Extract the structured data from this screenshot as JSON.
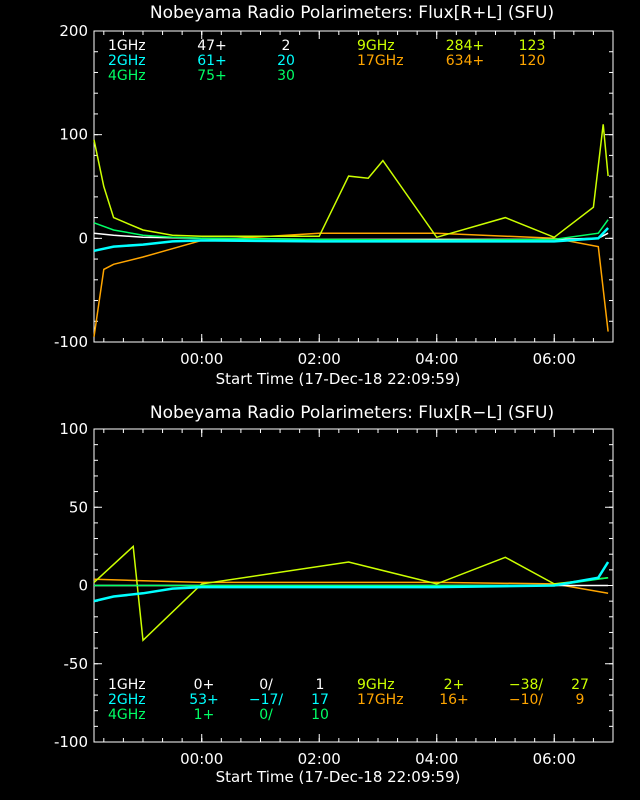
{
  "colors": {
    "1GHz": "#ffffff",
    "2GHz": "#00ffff",
    "4GHz": "#00ff66",
    "9GHz": "#ccff00",
    "17GHz": "#ffa500"
  },
  "chart_data": [
    {
      "type": "line",
      "title": "Nobeyama Radio Polarimeters: Flux[R+L] (SFU)",
      "xlabel": "Start Time (17-Dec-18 22:09:59)",
      "ylabel": "",
      "xlim": [
        "22:09:59",
        "07:00:00"
      ],
      "ylim": [
        -100,
        200
      ],
      "xticks": [
        "00:00",
        "02:00",
        "04:00",
        "06:00"
      ],
      "yticks": [
        "200",
        "100",
        "0",
        "-100"
      ],
      "grid": false,
      "legend": [
        {
          "band": "1GHz",
          "v1": "47+",
          "v2": "2"
        },
        {
          "band": "2GHz",
          "v1": "61+",
          "v2": "20"
        },
        {
          "band": "4GHz",
          "v1": "75+",
          "v2": "30"
        },
        {
          "band": "9GHz",
          "v1": "284+",
          "v2": "123"
        },
        {
          "band": "17GHz",
          "v1": "634+",
          "v2": "120"
        }
      ],
      "series": [
        {
          "name": "1GHz",
          "x": [
            "22:10",
            "22:30",
            "23:00",
            "00:00",
            "02:00",
            "04:00",
            "06:00",
            "06:45",
            "06:55"
          ],
          "y": [
            5,
            3,
            1,
            0,
            -1,
            -1,
            -1,
            0,
            5
          ]
        },
        {
          "name": "2GHz",
          "x": [
            "22:10",
            "22:30",
            "23:00",
            "23:30",
            "00:00",
            "02:00",
            "04:00",
            "06:00",
            "06:45",
            "06:55"
          ],
          "y": [
            -12,
            -8,
            -6,
            -3,
            -2,
            -3,
            -3,
            -3,
            0,
            10
          ]
        },
        {
          "name": "4GHz",
          "x": [
            "22:10",
            "22:30",
            "23:00",
            "23:30",
            "00:00",
            "02:00",
            "04:00",
            "06:00",
            "06:45",
            "06:55"
          ],
          "y": [
            15,
            8,
            3,
            1,
            0,
            -1,
            -2,
            -1,
            5,
            18
          ]
        },
        {
          "name": "9GHz",
          "x": [
            "22:10",
            "22:20",
            "22:30",
            "23:00",
            "23:30",
            "00:00",
            "02:00",
            "02:30",
            "02:50",
            "03:05",
            "04:00",
            "05:10",
            "06:00",
            "06:40",
            "06:50",
            "06:55"
          ],
          "y": [
            95,
            50,
            20,
            8,
            3,
            2,
            2,
            60,
            58,
            75,
            1,
            20,
            1,
            30,
            110,
            60
          ]
        },
        {
          "name": "17GHz",
          "x": [
            "22:10",
            "22:20",
            "22:30",
            "23:00",
            "23:30",
            "00:00",
            "02:00",
            "04:00",
            "06:00",
            "06:45",
            "06:55"
          ],
          "y": [
            -95,
            -30,
            -25,
            -18,
            -10,
            -2,
            5,
            5,
            0,
            -8,
            -90
          ]
        }
      ]
    },
    {
      "type": "line",
      "title": "Nobeyama Radio Polarimeters: Flux[R−L] (SFU)",
      "xlabel": "Start Time (17-Dec-18 22:09:59)",
      "ylabel": "",
      "xlim": [
        "22:09:59",
        "07:00:00"
      ],
      "ylim": [
        -100,
        100
      ],
      "xticks": [
        "00:00",
        "02:00",
        "04:00",
        "06:00"
      ],
      "yticks": [
        "100",
        "50",
        "0",
        "-50",
        "-100"
      ],
      "grid": false,
      "legend": [
        {
          "band": "1GHz",
          "v1": "0+",
          "v2": "0/",
          "v3": "1"
        },
        {
          "band": "2GHz",
          "v1": "53+",
          "v2": "−17/",
          "v3": "17"
        },
        {
          "band": "4GHz",
          "v1": "1+",
          "v2": "0/",
          "v3": "10"
        },
        {
          "band": "9GHz",
          "v1": "2+",
          "v2": "−38/",
          "v3": "27"
        },
        {
          "band": "17GHz",
          "v1": "16+",
          "v2": "−10/",
          "v3": "9"
        }
      ],
      "series": [
        {
          "name": "1GHz",
          "x": [
            "22:10",
            "00:00",
            "02:00",
            "04:00",
            "06:00",
            "06:55"
          ],
          "y": [
            0,
            0,
            0,
            0,
            0,
            0
          ]
        },
        {
          "name": "2GHz",
          "x": [
            "22:10",
            "22:30",
            "23:00",
            "23:30",
            "00:00",
            "02:00",
            "04:00",
            "06:00",
            "06:45",
            "06:55"
          ],
          "y": [
            -10,
            -7,
            -5,
            -2,
            -1,
            -1,
            -1,
            0,
            5,
            15
          ]
        },
        {
          "name": "4GHz",
          "x": [
            "22:10",
            "00:00",
            "02:00",
            "04:00",
            "06:00",
            "06:55"
          ],
          "y": [
            0,
            0,
            0,
            0,
            0,
            5
          ]
        },
        {
          "name": "9GHz",
          "x": [
            "22:10",
            "22:50",
            "23:00",
            "00:00",
            "02:30",
            "04:00",
            "05:10",
            "06:00",
            "06:55"
          ],
          "y": [
            2,
            25,
            -35,
            1,
            15,
            1,
            18,
            1,
            5
          ]
        },
        {
          "name": "17GHz",
          "x": [
            "22:10",
            "23:00",
            "00:00",
            "02:00",
            "04:00",
            "06:00",
            "06:55"
          ],
          "y": [
            4,
            3,
            2,
            2,
            2,
            1,
            -5
          ]
        }
      ]
    }
  ]
}
